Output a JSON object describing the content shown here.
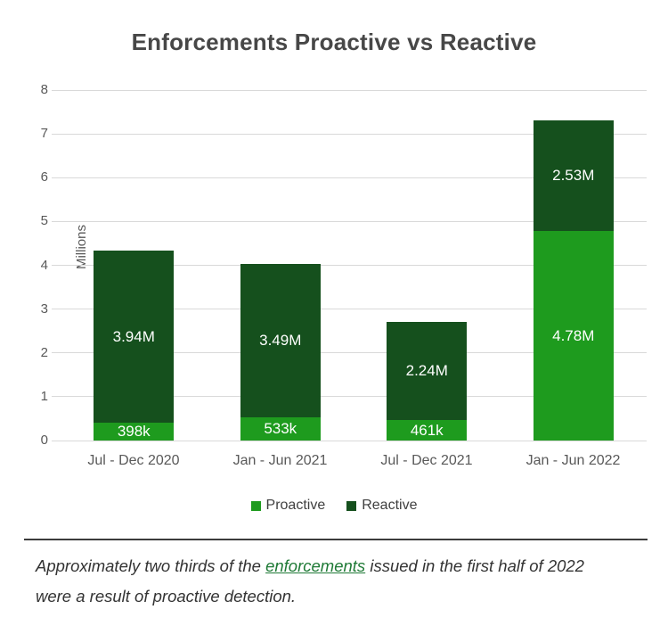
{
  "title": "Enforcements Proactive vs Reactive",
  "chart_data": {
    "type": "bar",
    "stacked": true,
    "categories": [
      "Jul - Dec 2020",
      "Jan - Jun 2021",
      "Jul - Dec 2021",
      "Jan - Jun 2022"
    ],
    "series": [
      {
        "name": "Proactive",
        "color": "#1e9b1e",
        "values_millions": [
          0.398,
          0.533,
          0.461,
          4.78
        ],
        "labels": [
          "398k",
          "533k",
          "461k",
          "4.78M"
        ]
      },
      {
        "name": "Reactive",
        "color": "#15501d",
        "values_millions": [
          3.94,
          3.49,
          2.24,
          2.53
        ],
        "labels": [
          "3.94M",
          "3.49M",
          "2.24M",
          "2.53M"
        ]
      }
    ],
    "ylabel": "Millions",
    "ylim": [
      0,
      8
    ],
    "yticks": [
      0,
      1,
      2,
      3,
      4,
      5,
      6,
      7,
      8
    ],
    "grid": true,
    "legend_position": "bottom",
    "data_label_color": "#ffffff"
  },
  "legend": [
    {
      "label": "Proactive",
      "color": "#1e9b1e"
    },
    {
      "label": "Reactive",
      "color": "#15501d"
    }
  ],
  "caption": {
    "line1_before": "Approximately two thirds of the ",
    "line1_link": "enforcements",
    "line1_after": " issued in the first half of 2022",
    "line2": "were a result of proactive detection.",
    "link_color": "#1f7a36"
  },
  "colors": {
    "title": "#474747",
    "axis_text": "#595959",
    "gridline": "#d9d9d9",
    "separator": "#3c3c3c",
    "caption_text": "#333333"
  }
}
